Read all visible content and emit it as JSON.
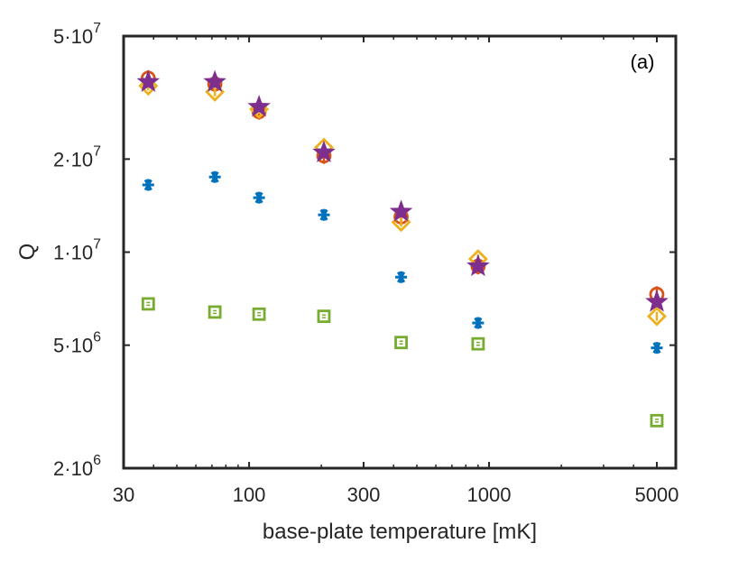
{
  "chart_data": {
    "type": "scatter",
    "title": "",
    "panel_label": "(a)",
    "xlabel": "base-plate temperature [mK]",
    "ylabel": "Q",
    "xscale": "log",
    "yscale": "log",
    "xlim": [
      30,
      6000
    ],
    "ylim": [
      2000000,
      50000000
    ],
    "x_ticks": [
      {
        "value": 30,
        "label": "30"
      },
      {
        "value": 100,
        "label": "100"
      },
      {
        "value": 300,
        "label": "300"
      },
      {
        "value": 1000,
        "label": "1000"
      },
      {
        "value": 5000,
        "label": "5000"
      }
    ],
    "y_ticks": [
      {
        "value": 2000000,
        "mant": "2·10",
        "exp": "6"
      },
      {
        "value": 5000000,
        "mant": "5·10",
        "exp": "6"
      },
      {
        "value": 10000000,
        "mant": "1·10",
        "exp": "7"
      },
      {
        "value": 20000000,
        "mant": "2·10",
        "exp": "7"
      },
      {
        "value": 50000000,
        "mant": "5·10",
        "exp": "7"
      }
    ],
    "grid": false,
    "legend": "none",
    "series": [
      {
        "marker": "asterisk",
        "color": "#0072BD",
        "points": [
          [
            38,
            16500000
          ],
          [
            72,
            17500000
          ],
          [
            110,
            15000000
          ],
          [
            205,
            13200000
          ],
          [
            430,
            8300000
          ],
          [
            900,
            5900000
          ],
          [
            5000,
            4900000
          ]
        ]
      },
      {
        "marker": "circle",
        "color": "#D95319",
        "points": [
          [
            38,
            36500000
          ],
          [
            72,
            35000000
          ],
          [
            110,
            28500000
          ],
          [
            205,
            20500000
          ],
          [
            430,
            13000000
          ],
          [
            900,
            9000000
          ],
          [
            5000,
            7300000
          ]
        ]
      },
      {
        "marker": "diamond",
        "color": "#EDB120",
        "points": [
          [
            38,
            34500000
          ],
          [
            72,
            33000000
          ],
          [
            110,
            29000000
          ],
          [
            205,
            21800000
          ],
          [
            430,
            12500000
          ],
          [
            900,
            9500000
          ],
          [
            5000,
            6200000
          ]
        ]
      },
      {
        "marker": "square",
        "color": "#77AC30",
        "points": [
          [
            38,
            6800000
          ],
          [
            72,
            6400000
          ],
          [
            110,
            6300000
          ],
          [
            205,
            6200000
          ],
          [
            430,
            5100000
          ],
          [
            900,
            5050000
          ],
          [
            5000,
            2850000
          ]
        ]
      },
      {
        "marker": "star",
        "color": "#7E2F8E",
        "points": [
          [
            38,
            35500000
          ],
          [
            72,
            35500000
          ],
          [
            110,
            29500000
          ],
          [
            205,
            21000000
          ],
          [
            430,
            13500000
          ],
          [
            900,
            9000000
          ],
          [
            5000,
            6900000
          ]
        ]
      }
    ]
  }
}
